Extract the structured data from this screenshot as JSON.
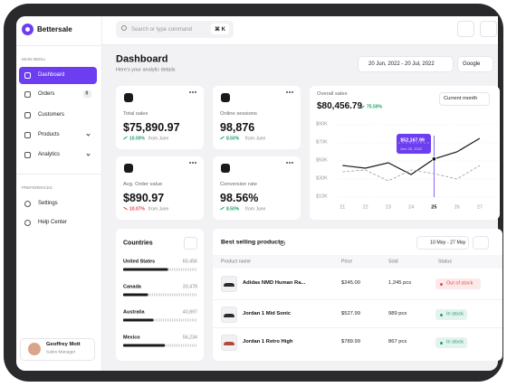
{
  "sidebar": {
    "brand": "Bettersale",
    "main_menu_label": "MAIN MENU",
    "main_menu": [
      {
        "label": "Dashboard"
      },
      {
        "label": "Orders",
        "badge": "8"
      },
      {
        "label": "Customers"
      },
      {
        "label": "Products"
      },
      {
        "label": "Analytics"
      }
    ],
    "preferences_label": "PREFERENCES",
    "preferences": [
      {
        "label": "Settings"
      },
      {
        "label": "Help Center"
      }
    ],
    "user": {
      "name": "Geoffrey Mott",
      "role": "Sales Manager"
    }
  },
  "topbar": {
    "search_placeholder": "Search or type command",
    "shortcut": "⌘ K"
  },
  "header": {
    "title": "Dashboard",
    "subtitle": "Here's your analytic details",
    "date_range": "20 Jun, 2022 - 20 Jul, 2022",
    "source": "Google"
  },
  "stats": [
    {
      "label": "Total sales",
      "value": "$75,890.97",
      "change": "10.00%",
      "note": "from June",
      "trend": "up"
    },
    {
      "label": "Online sessions",
      "value": "98,876",
      "change": "8.50%",
      "note": "from June",
      "trend": "up"
    },
    {
      "label": "Avg. Order value",
      "value": "$890.97",
      "change": "10.07%",
      "note": "from June",
      "trend": "down"
    },
    {
      "label": "Conversion rate",
      "value": "98.56%",
      "change": "8.50%",
      "note": "from June",
      "trend": "up"
    }
  ],
  "overall_sales": {
    "type": "line",
    "title": "Overall sales",
    "value": "$80,456.79",
    "change": "75.50%",
    "period": "Current month",
    "x": [
      21,
      22,
      23,
      24,
      25,
      26,
      27
    ],
    "xlim": [
      20.75,
      27.4
    ],
    "xticks": [
      21,
      22,
      23,
      24,
      25,
      26,
      27
    ],
    "ylim": [
      10,
      90
    ],
    "yticks": [
      {
        "value": 90,
        "label": "$90K"
      },
      {
        "value": 70,
        "label": "$70K"
      },
      {
        "value": 50,
        "label": "$50K"
      },
      {
        "value": 30,
        "label": "$30K"
      },
      {
        "value": 10,
        "label": "$10K"
      }
    ],
    "grid": true,
    "series": [
      {
        "color": "#1a1a1a",
        "dash": false,
        "values": [
          45,
          42,
          48,
          35,
          52.16799,
          60,
          75
        ]
      },
      {
        "color": "#9a9aa3",
        "dash": true,
        "values": [
          38,
          40,
          28,
          40,
          36,
          30,
          45
        ]
      }
    ],
    "tooltip": {
      "x": 25,
      "value": 52.16799,
      "label": "$52,167.99",
      "date": "Dec 25, 2022",
      "color": "#6d3df0"
    }
  },
  "countries": {
    "title": "Countries",
    "rows": [
      {
        "name": "United States",
        "value": 60456,
        "value_label": "60,456"
      },
      {
        "name": "Canada",
        "value": 33478,
        "value_label": "33,478"
      },
      {
        "name": "Australia",
        "value": 40897,
        "value_label": "40,897"
      },
      {
        "name": "Mexico",
        "value": 56234,
        "value_label": "56,234"
      }
    ]
  },
  "products": {
    "title": "Best selling products",
    "date_range": "10 May - 27 May",
    "columns": [
      "Product name",
      "Price",
      "Sold",
      "Status"
    ],
    "rows": [
      {
        "name": "Adidas NMD Human Ra...",
        "price": "$245.00",
        "sold": "1,245 pcs",
        "status": "Out of stock",
        "status_color": "#e5484d"
      },
      {
        "name": "Jordan 1 Mid Sonic",
        "price": "$527.99",
        "sold": "989 pcs",
        "status": "In stock",
        "status_color": "#22a06b"
      },
      {
        "name": "Jordan 1 Retro High",
        "price": "$789.99",
        "sold": "867 pcs",
        "status": "In stock",
        "status_color": "#22a06b"
      }
    ]
  }
}
